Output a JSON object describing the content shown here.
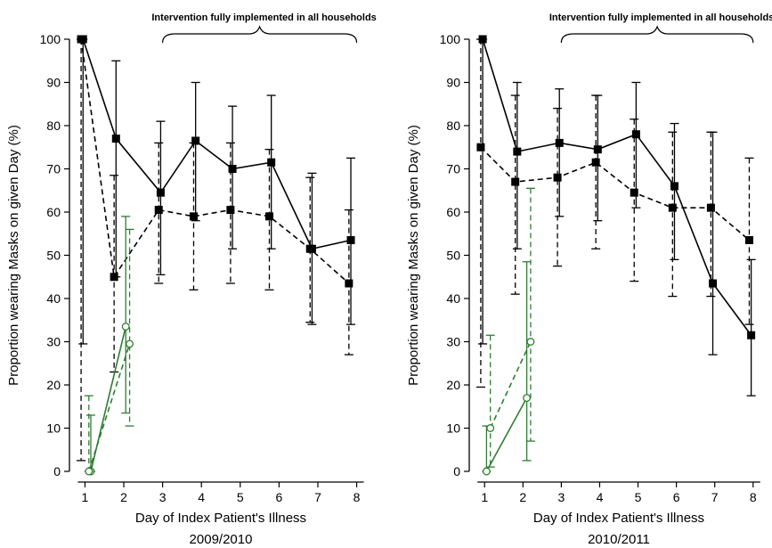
{
  "chart_data": [
    {
      "type": "line",
      "title": "",
      "subtitle": "2009/2010",
      "xlabel": "Day of Index Patient's Illness",
      "ylabel": "Proportion wearing Masks on given Day (%)",
      "annotation": "Intervention fully implemented in all households",
      "annotation_span": [
        3,
        8
      ],
      "xlim": [
        0.6,
        8.4
      ],
      "ylim": [
        0,
        100
      ],
      "xticks": [
        1,
        2,
        3,
        4,
        5,
        6,
        7,
        8
      ],
      "yticks": [
        0,
        10,
        20,
        30,
        40,
        50,
        60,
        70,
        80,
        90,
        100
      ],
      "grid": false,
      "series": [
        {
          "color": "#000000",
          "line": "solid",
          "marker": "filled-square",
          "x": [
            0.95,
            1.8,
            2.95,
            3.85,
            4.8,
            5.8,
            6.85,
            7.85
          ],
          "y": [
            100,
            77,
            64.5,
            76.5,
            70,
            71.5,
            51.5,
            53.5
          ],
          "lo": [
            29.5,
            45,
            45.5,
            58,
            51.5,
            51.5,
            34,
            34
          ],
          "hi": [
            100,
            95,
            81,
            90,
            84.5,
            87,
            69,
            72.5
          ]
        },
        {
          "color": "#000000",
          "line": "dashed",
          "marker": "filled-square",
          "x": [
            0.9,
            1.75,
            2.9,
            3.8,
            4.75,
            5.75,
            6.8,
            7.8
          ],
          "y": [
            100,
            45,
            60.5,
            59,
            60.5,
            59,
            51.5,
            43.5
          ],
          "lo": [
            2.5,
            23,
            43.5,
            42,
            43.5,
            42,
            34.5,
            27
          ],
          "hi": [
            100,
            68.5,
            76,
            76,
            76,
            74.5,
            68,
            60.5
          ]
        },
        {
          "color": "#2e7d32",
          "line": "solid",
          "marker": "open-circle",
          "x": [
            1.15,
            2.05
          ],
          "y": [
            0,
            33.5
          ],
          "lo": [
            0,
            13.5
          ],
          "hi": [
            13,
            59
          ]
        },
        {
          "color": "#2e7d32",
          "line": "dashed",
          "marker": "open-circle",
          "x": [
            1.1,
            2.15
          ],
          "y": [
            0,
            29.5
          ],
          "lo": [
            0,
            10.5
          ],
          "hi": [
            17.5,
            56
          ]
        }
      ]
    },
    {
      "type": "line",
      "title": "",
      "subtitle": "2010/2011",
      "xlabel": "Day of Index Patient's Illness",
      "ylabel": "Proportion wearing Masks on given Day (%)",
      "annotation": "Intervention fully implemented in all households",
      "annotation_span": [
        3,
        8
      ],
      "xlim": [
        0.6,
        8.4
      ],
      "ylim": [
        0,
        100
      ],
      "xticks": [
        1,
        2,
        3,
        4,
        5,
        6,
        7,
        8
      ],
      "yticks": [
        0,
        10,
        20,
        30,
        40,
        50,
        60,
        70,
        80,
        90,
        100
      ],
      "grid": false,
      "series": [
        {
          "color": "#000000",
          "line": "solid",
          "marker": "filled-square",
          "x": [
            0.95,
            1.85,
            2.95,
            3.95,
            4.95,
            5.95,
            6.95,
            7.95
          ],
          "y": [
            100,
            74,
            76,
            74.5,
            78,
            66,
            43.5,
            31.5
          ],
          "lo": [
            29.5,
            51.5,
            59,
            58,
            61,
            49,
            27,
            17.5
          ],
          "hi": [
            100,
            90,
            88.5,
            87,
            90,
            80.5,
            78.5,
            49
          ]
        },
        {
          "color": "#000000",
          "line": "dashed",
          "marker": "filled-square",
          "x": [
            0.9,
            1.8,
            2.9,
            3.9,
            4.9,
            5.9,
            6.9,
            7.9
          ],
          "y": [
            75,
            67,
            68,
            71.5,
            64.5,
            61,
            61,
            53.5
          ],
          "lo": [
            19.5,
            41,
            47.5,
            51.5,
            44,
            40.5,
            40.5,
            34
          ],
          "hi": [
            100,
            87,
            84,
            87,
            81.5,
            78.5,
            78.5,
            72.5
          ]
        },
        {
          "color": "#2e7d32",
          "line": "solid",
          "marker": "open-circle",
          "x": [
            1.05,
            2.1
          ],
          "y": [
            0,
            17
          ],
          "lo": [
            0,
            2.5
          ],
          "hi": [
            10.5,
            48.5
          ]
        },
        {
          "color": "#2e7d32",
          "line": "dashed",
          "marker": "open-circle",
          "x": [
            1.15,
            2.2
          ],
          "y": [
            10,
            30
          ],
          "lo": [
            1,
            7
          ],
          "hi": [
            31.5,
            65.5
          ]
        }
      ]
    }
  ]
}
